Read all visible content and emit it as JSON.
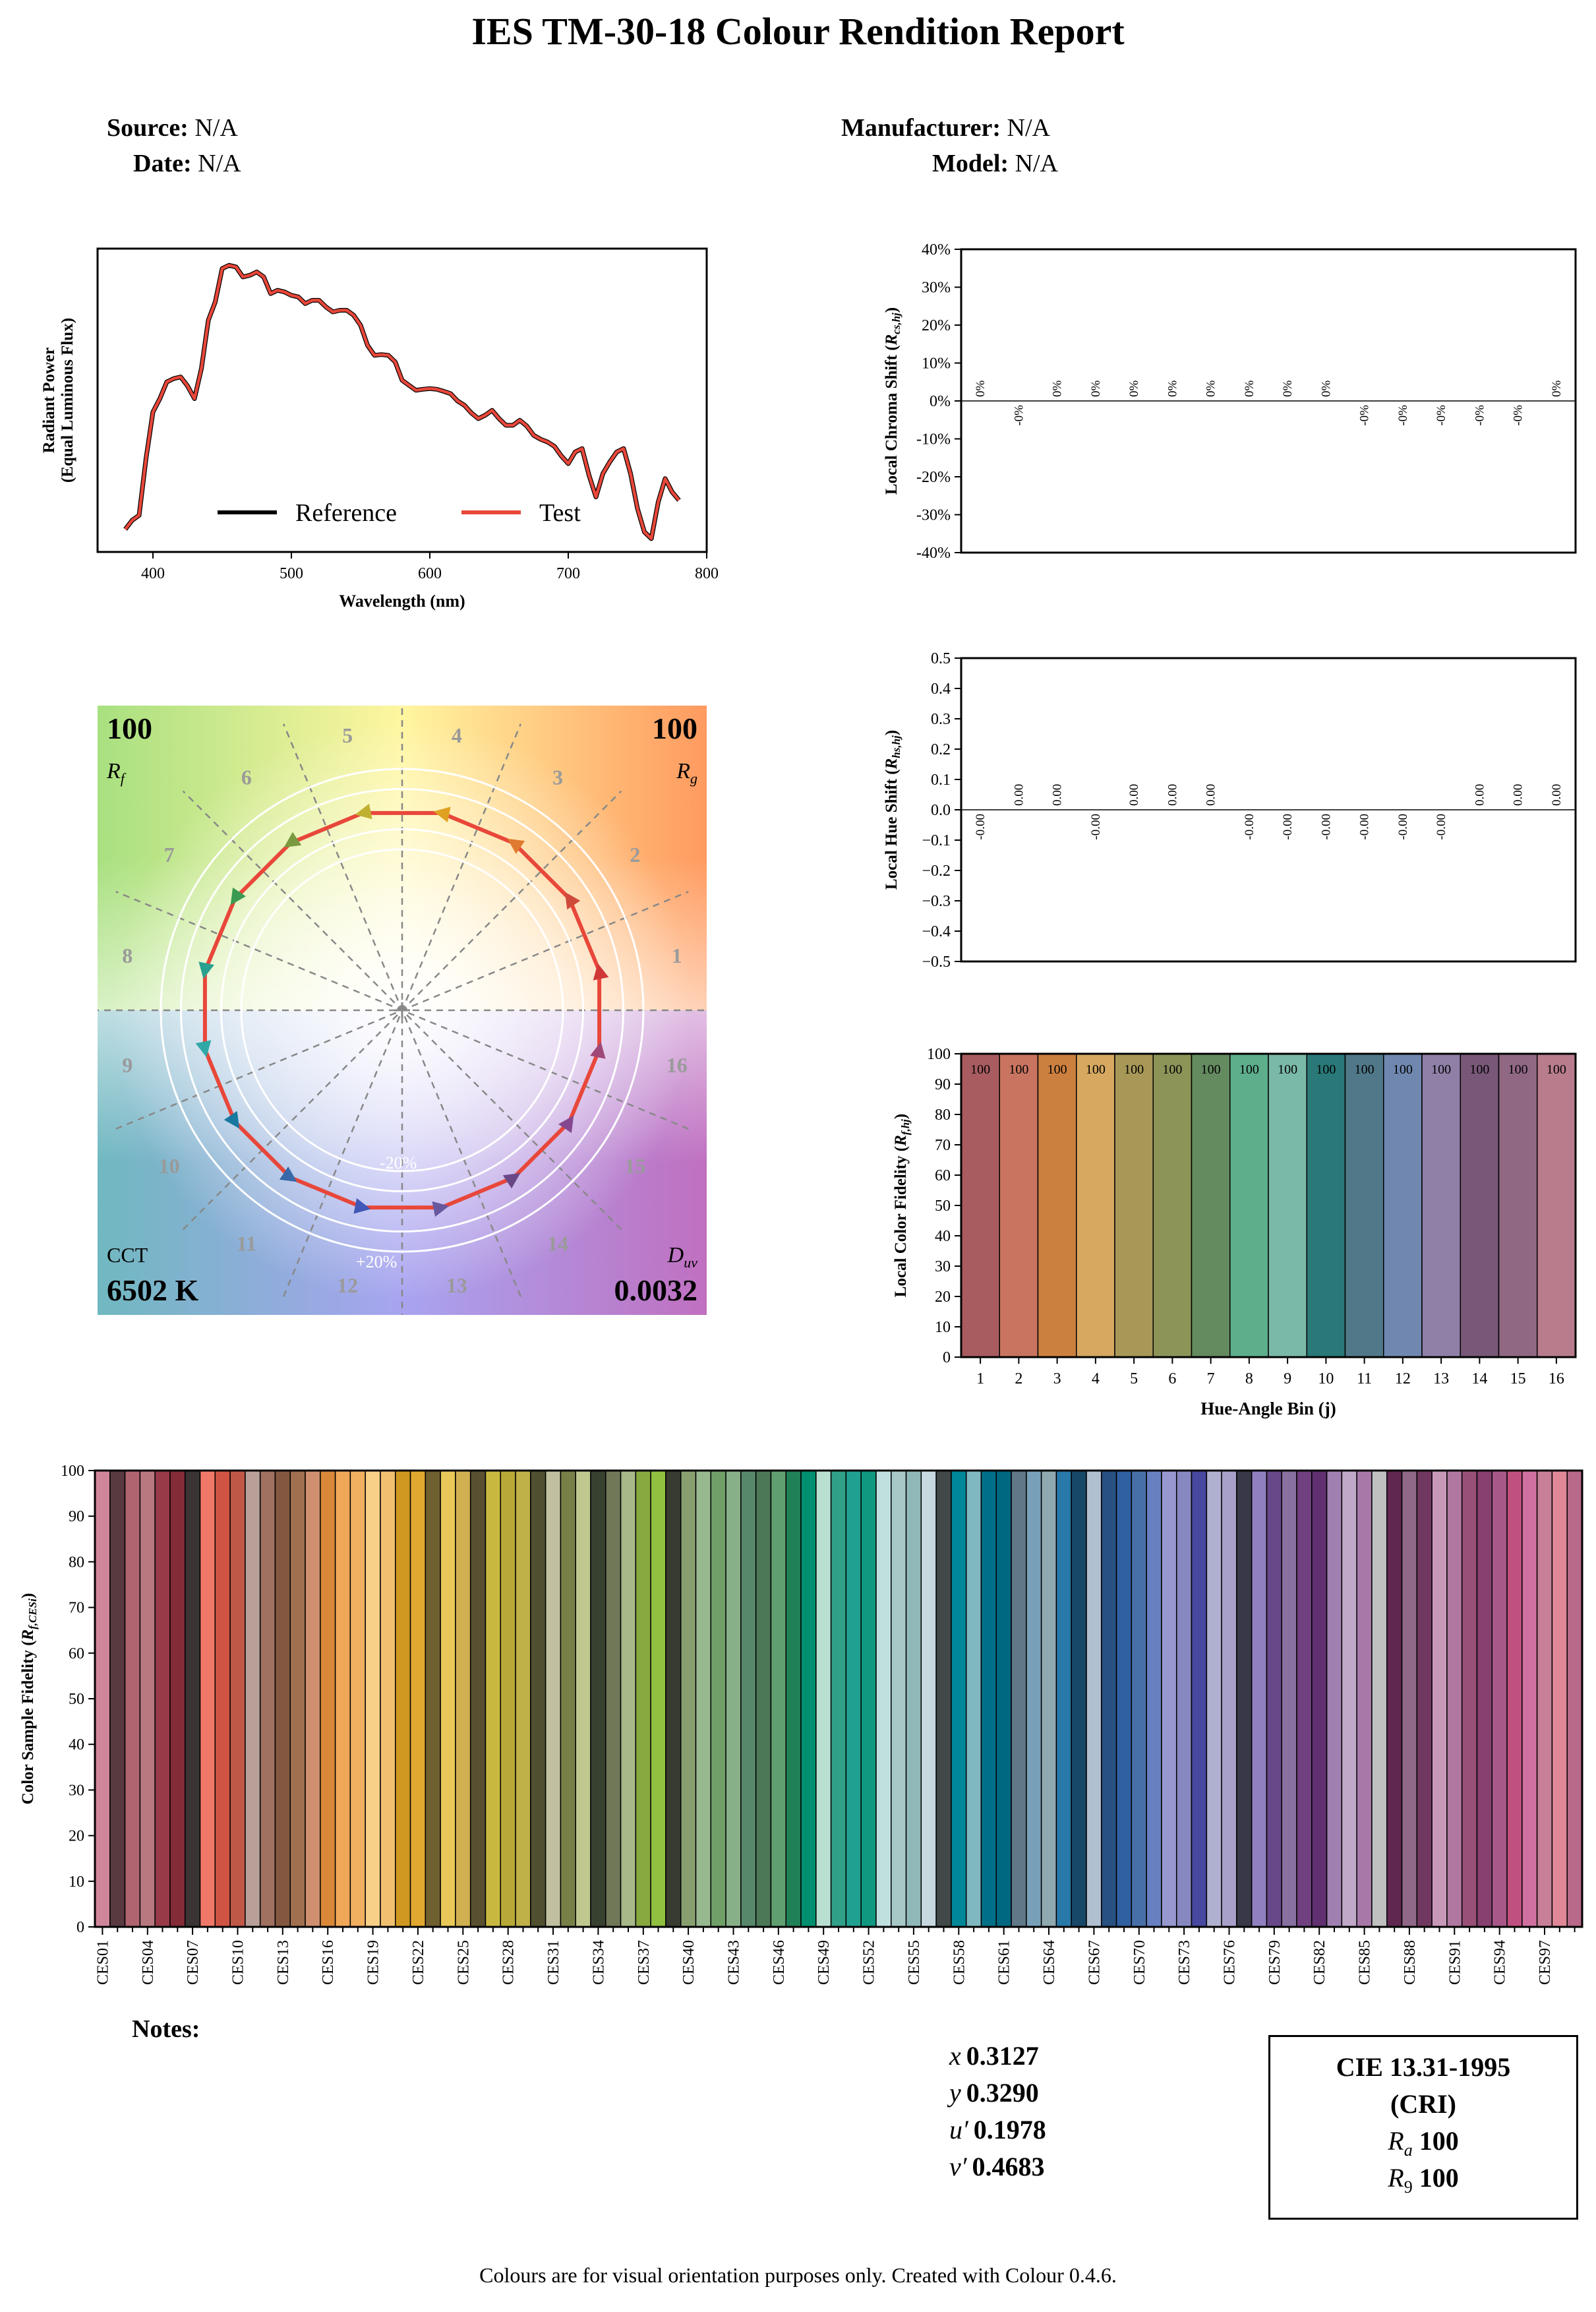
{
  "report": {
    "title": "IES TM-30-18 Colour Rendition Report",
    "source_label": "Source:",
    "source_value": "N/A",
    "date_label": "Date:",
    "date_value": "N/A",
    "manufacturer_label": "Manufacturer:",
    "manufacturer_value": "N/A",
    "model_label": "Model:",
    "model_value": "N/A",
    "notes_label": "Notes:",
    "footer": "Colours are for visual orientation purposes only. Created with Colour 0.4.6."
  },
  "coordinates": {
    "x_label": "x",
    "x_value": "0.3127",
    "y_label": "y",
    "y_value": "0.3290",
    "u_label": "u′",
    "u_value": "0.1978",
    "v_label": "v′",
    "v_value": "0.4683"
  },
  "cri": {
    "title_line1": "CIE 13.31-1995",
    "title_line2": "(CRI)",
    "ra_label": "Ra",
    "ra_value": "100",
    "r9_label": "R9",
    "r9_value": "100"
  },
  "chart_data": [
    {
      "type": "line",
      "xlabel": "Wavelength (nm)",
      "ylabel_line1": "Radiant Power",
      "ylabel_line2": "(Equal Luminous Flux)",
      "xlim": [
        360,
        800
      ],
      "xticks": [
        400,
        500,
        600,
        700,
        800
      ],
      "ylim": [
        0.15,
        1.06
      ],
      "legend_position": "lower-center",
      "series": [
        {
          "name": "Reference",
          "color": "#000000"
        },
        {
          "name": "Test",
          "color": "#e8473a"
        }
      ],
      "x": [
        380,
        385,
        390,
        395,
        400,
        405,
        410,
        415,
        420,
        425,
        430,
        435,
        440,
        445,
        450,
        455,
        460,
        465,
        470,
        475,
        480,
        485,
        490,
        495,
        500,
        505,
        510,
        515,
        520,
        525,
        530,
        535,
        540,
        545,
        550,
        555,
        560,
        565,
        570,
        575,
        580,
        585,
        590,
        595,
        600,
        605,
        610,
        615,
        620,
        625,
        630,
        635,
        640,
        645,
        650,
        655,
        660,
        665,
        670,
        675,
        680,
        685,
        690,
        695,
        700,
        705,
        710,
        715,
        720,
        725,
        730,
        735,
        740,
        745,
        750,
        755,
        760,
        765,
        770,
        775,
        780
      ],
      "y": [
        0.218,
        0.245,
        0.26,
        0.43,
        0.57,
        0.61,
        0.66,
        0.67,
        0.675,
        0.648,
        0.61,
        0.7,
        0.845,
        0.9,
        1.0,
        1.01,
        1.005,
        0.975,
        0.98,
        0.99,
        0.975,
        0.925,
        0.935,
        0.93,
        0.92,
        0.915,
        0.895,
        0.905,
        0.905,
        0.885,
        0.87,
        0.875,
        0.875,
        0.86,
        0.83,
        0.77,
        0.74,
        0.742,
        0.74,
        0.72,
        0.665,
        0.65,
        0.635,
        0.638,
        0.64,
        0.638,
        0.632,
        0.625,
        0.603,
        0.59,
        0.567,
        0.55,
        0.56,
        0.575,
        0.55,
        0.53,
        0.53,
        0.545,
        0.528,
        0.5,
        0.488,
        0.48,
        0.467,
        0.438,
        0.415,
        0.45,
        0.46,
        0.38,
        0.315,
        0.385,
        0.42,
        0.45,
        0.46,
        0.385,
        0.28,
        0.21,
        0.19,
        0.3,
        0.37,
        0.33,
        0.305
      ]
    },
    {
      "type": "bar",
      "ylabel": "Local Chroma Shift (Rcs,hj)",
      "ylim": [
        -0.4,
        0.4
      ],
      "yticks": [
        "-40%",
        "-30%",
        "-20%",
        "-10%",
        "0%",
        "10%",
        "20%",
        "30%",
        "40%"
      ],
      "categories": [
        "1",
        "2",
        "3",
        "4",
        "5",
        "6",
        "7",
        "8",
        "9",
        "10",
        "11",
        "12",
        "13",
        "14",
        "15",
        "16"
      ],
      "values": [
        0,
        0,
        0,
        0,
        0,
        0,
        0,
        0,
        0,
        0,
        0,
        0,
        0,
        0,
        0,
        0
      ],
      "labels": [
        "0%",
        "-0%",
        "0%",
        "0%",
        "0%",
        "0%",
        "0%",
        "0%",
        "0%",
        "0%",
        "-0%",
        "-0%",
        "-0%",
        "-0%",
        "-0%",
        "0%"
      ]
    },
    {
      "type": "bar",
      "ylabel": "Local Hue Shift (Rhs,hj)",
      "ylim": [
        -0.5,
        0.5
      ],
      "yticks": [
        "−0.5",
        "−0.4",
        "−0.3",
        "−0.2",
        "−0.1",
        "0.0",
        "0.1",
        "0.2",
        "0.3",
        "0.4",
        "0.5"
      ],
      "categories": [
        "1",
        "2",
        "3",
        "4",
        "5",
        "6",
        "7",
        "8",
        "9",
        "10",
        "11",
        "12",
        "13",
        "14",
        "15",
        "16"
      ],
      "values": [
        0,
        0,
        0,
        0,
        0,
        0,
        0,
        0,
        0,
        0,
        0,
        0,
        0,
        0,
        0,
        0
      ],
      "labels": [
        "-0.00",
        "0.00",
        "0.00",
        "-0.00",
        "0.00",
        "0.00",
        "0.00",
        "-0.00",
        "-0.00",
        "-0.00",
        "-0.00",
        "-0.00",
        "-0.00",
        "0.00",
        "0.00",
        "0.00"
      ]
    },
    {
      "type": "bar",
      "ylabel": "Local Color Fidelity (Rf,hj)",
      "xlabel": "Hue-Angle Bin (j)",
      "ylim": [
        0,
        100
      ],
      "yticks": [
        "0",
        "10",
        "20",
        "30",
        "40",
        "50",
        "60",
        "70",
        "80",
        "90",
        "100"
      ],
      "categories": [
        "1",
        "2",
        "3",
        "4",
        "5",
        "6",
        "7",
        "8",
        "9",
        "10",
        "11",
        "12",
        "13",
        "14",
        "15",
        "16"
      ],
      "values": [
        100,
        100,
        100,
        100,
        100,
        100,
        100,
        100,
        100,
        100,
        100,
        100,
        100,
        100,
        100,
        100
      ],
      "labels": [
        "100",
        "100",
        "100",
        "100",
        "100",
        "100",
        "100",
        "100",
        "100",
        "100",
        "100",
        "100",
        "100",
        "100",
        "100",
        "100"
      ],
      "colors": [
        "#a85c60",
        "#c87460",
        "#cc8040",
        "#d6a860",
        "#a89858",
        "#8c9458",
        "#648a60",
        "#5eae8c",
        "#7ab8a8",
        "#2a7878",
        "#507888",
        "#7088b0",
        "#9080a8",
        "#785878",
        "#906884",
        "#b87c8c"
      ]
    },
    {
      "type": "scatter",
      "name": "colour-vector-graphic",
      "rf_value": "100",
      "rf_label": "Rf",
      "rg_value": "100",
      "rg_label": "Rg",
      "cct_label": "CCT",
      "cct_value": "6502 K",
      "duv_label": "Duv",
      "duv_value": "0.0032",
      "ring_labels": [
        "-20%",
        "+20%"
      ],
      "bin_labels": [
        "1",
        "2",
        "3",
        "4",
        "5",
        "6",
        "7",
        "8",
        "9",
        "10",
        "11",
        "12",
        "13",
        "14",
        "15",
        "16"
      ],
      "arrow_colors": [
        "#d03838",
        "#d04a3a",
        "#e07a30",
        "#e0a020",
        "#c0b030",
        "#7a9a40",
        "#3a9a50",
        "#2aa090",
        "#30a8a8",
        "#1878a0",
        "#3868a8",
        "#4058b8",
        "#6858a0",
        "#6a4888",
        "#844890",
        "#a04878"
      ]
    },
    {
      "type": "bar",
      "ylabel": "Color Sample Fidelity (Rf,CESi)",
      "ylim": [
        0,
        100
      ],
      "yticks": [
        "0",
        "10",
        "20",
        "30",
        "40",
        "50",
        "60",
        "70",
        "80",
        "90",
        "100"
      ],
      "tick_labels": [
        "CES01",
        "CES04",
        "CES07",
        "CES10",
        "CES13",
        "CES16",
        "CES19",
        "CES22",
        "CES25",
        "CES28",
        "CES31",
        "CES34",
        "CES37",
        "CES40",
        "CES43",
        "CES46",
        "CES49",
        "CES52",
        "CES55",
        "CES58",
        "CES61",
        "CES64",
        "CES67",
        "CES70",
        "CES73",
        "CES76",
        "CES79",
        "CES82",
        "CES85",
        "CES88",
        "CES91",
        "CES94",
        "CES97"
      ],
      "values": [
        100,
        100,
        100,
        100,
        100,
        100,
        100,
        100,
        100,
        100,
        100,
        100,
        100,
        100,
        100,
        100,
        100,
        100,
        100,
        100,
        100,
        100,
        100,
        100,
        100,
        100,
        100,
        100,
        100,
        100,
        100,
        100,
        100,
        100,
        100,
        100,
        100,
        100,
        100,
        100,
        100,
        100,
        100,
        100,
        100,
        100,
        100,
        100,
        100,
        100,
        100,
        100,
        100,
        100,
        100,
        100,
        100,
        100,
        100,
        100,
        100,
        100,
        100,
        100,
        100,
        100,
        100,
        100,
        100,
        100,
        100,
        100,
        100,
        100,
        100,
        100,
        100,
        100,
        100,
        100,
        100,
        100,
        100,
        100,
        100,
        100,
        100,
        100,
        100,
        100,
        100,
        100,
        100,
        100,
        100,
        100,
        100,
        100,
        100
      ],
      "colors": [
        "#d0869a",
        "#583a40",
        "#b06470",
        "#b87880",
        "#983a48",
        "#842c38",
        "#3a3434",
        "#f07868",
        "#d05444",
        "#c05848",
        "#b8a098",
        "#a07060",
        "#845840",
        "#a07050",
        "#d09070",
        "#d88838",
        "#f0a858",
        "#f0b060",
        "#f8d088",
        "#f0c070",
        "#d09820",
        "#e0a830",
        "#706030",
        "#e8c858",
        "#d0b050",
        "#585030",
        "#c8b840",
        "#b8a838",
        "#c0b048",
        "#505030",
        "#c0c0a0",
        "#788048",
        "#c0c890",
        "#384030",
        "#707858",
        "#a8b888",
        "#88a840",
        "#90c040",
        "#383c30",
        "#88a070",
        "#98b890",
        "#70a068",
        "#88b088",
        "#58886c",
        "#4c7858",
        "#60a070",
        "#208058",
        "#009070",
        "#b8e0d0",
        "#30a088",
        "#20a090",
        "#109880",
        "#c0e0e0",
        "#a8c8c8",
        "#90b8b8",
        "#c8d8e0",
        "#404848",
        "#008898",
        "#80b8c0",
        "#007088",
        "#006880",
        "#607888",
        "#78a0b8",
        "#90a8b0",
        "#2878a8",
        "#184868",
        "#b0c0d0",
        "#285080",
        "#3060a0",
        "#4870a8",
        "#6880c0",
        "#9898d0",
        "#8888c0",
        "#4848a0",
        "#b0b0d0",
        "#a8a0c8",
        "#383848",
        "#9080c0",
        "#684888",
        "#8870a0",
        "#704080",
        "#603070",
        "#a080b0",
        "#c0a8c8",
        "#a878a8",
        "#c0c0c0",
        "#602850",
        "#906888",
        "#703860",
        "#c898b8",
        "#b078a0",
        "#985078",
        "#884070",
        "#a85888",
        "#c05080",
        "#d070a0",
        "#c88098",
        "#e08898",
        "#b86888"
      ]
    }
  ]
}
